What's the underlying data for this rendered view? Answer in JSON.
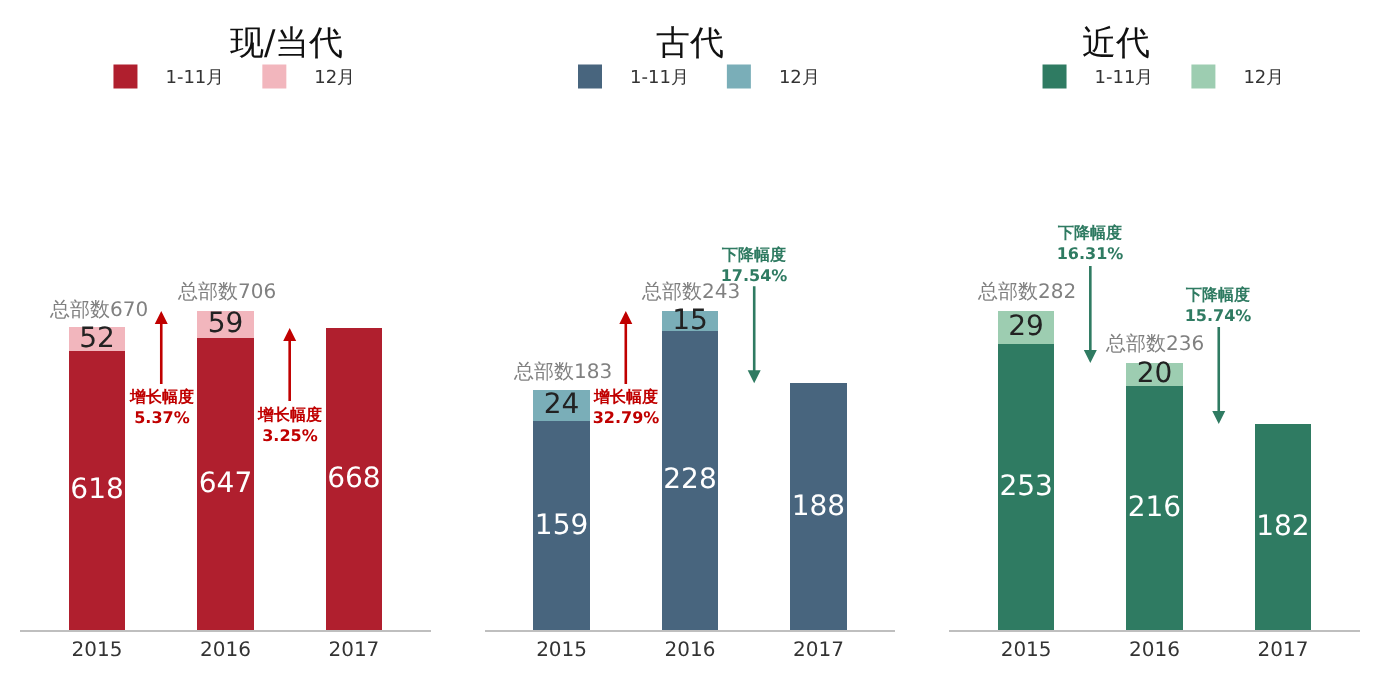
{
  "chart_data": [
    {
      "type": "bar",
      "title": "现/当代",
      "stacked": true,
      "data_labels": true,
      "legend": "top",
      "tick_labels": "x",
      "categories": [
        "2015",
        "2016",
        "2017"
      ],
      "series": [
        {
          "name": "1-11月",
          "color": "#b01f2e",
          "values": [
            618,
            647,
            668
          ]
        },
        {
          "name": "12月",
          "color": "#f2b6bd",
          "values": [
            52,
            59,
            null
          ]
        }
      ],
      "annotations": [
        {
          "text": "总部数670",
          "x": "2015",
          "y": 670
        },
        {
          "text": "总部数706",
          "x": "2016",
          "y": 706
        },
        "增长幅度\n5.37%",
        "增长幅度\n3.25%"
      ]
    },
    {
      "type": "bar",
      "title": "古代",
      "stacked": true,
      "data_labels": true,
      "legend": "top",
      "tick_labels": "x",
      "categories": [
        "2015",
        "2016",
        "2017"
      ],
      "series": [
        {
          "name": "1-11月",
          "color": "#48657e",
          "values": [
            159,
            228,
            188
          ]
        },
        {
          "name": "12月",
          "color": "#7aaeb8",
          "values": [
            24,
            15,
            null
          ]
        }
      ],
      "annotations": [
        {
          "text": "总部数183",
          "x": "2015",
          "y": 183
        },
        {
          "text": "总部数243",
          "x": "2016",
          "y": 243
        },
        "增长幅度\n32.79%",
        "下降幅度\n17.54%"
      ]
    },
    {
      "type": "bar",
      "title": "近代",
      "stacked": true,
      "data_labels": true,
      "legend": "top",
      "tick_labels": "x",
      "categories": [
        "2015",
        "2016",
        "2017"
      ],
      "series": [
        {
          "name": "1-11月",
          "color": "#2f7b62",
          "values": [
            253,
            216,
            182
          ]
        },
        {
          "name": "12月",
          "color": "#9dcdb1",
          "values": [
            29,
            20,
            null
          ]
        }
      ],
      "annotations": [
        {
          "text": "总部数282",
          "x": "2015",
          "y": 282
        },
        {
          "text": "总部数236",
          "x": "2016",
          "y": 236
        },
        "下降幅度\n16.31%",
        "下降幅度\n15.74%"
      ]
    }
  ]
}
